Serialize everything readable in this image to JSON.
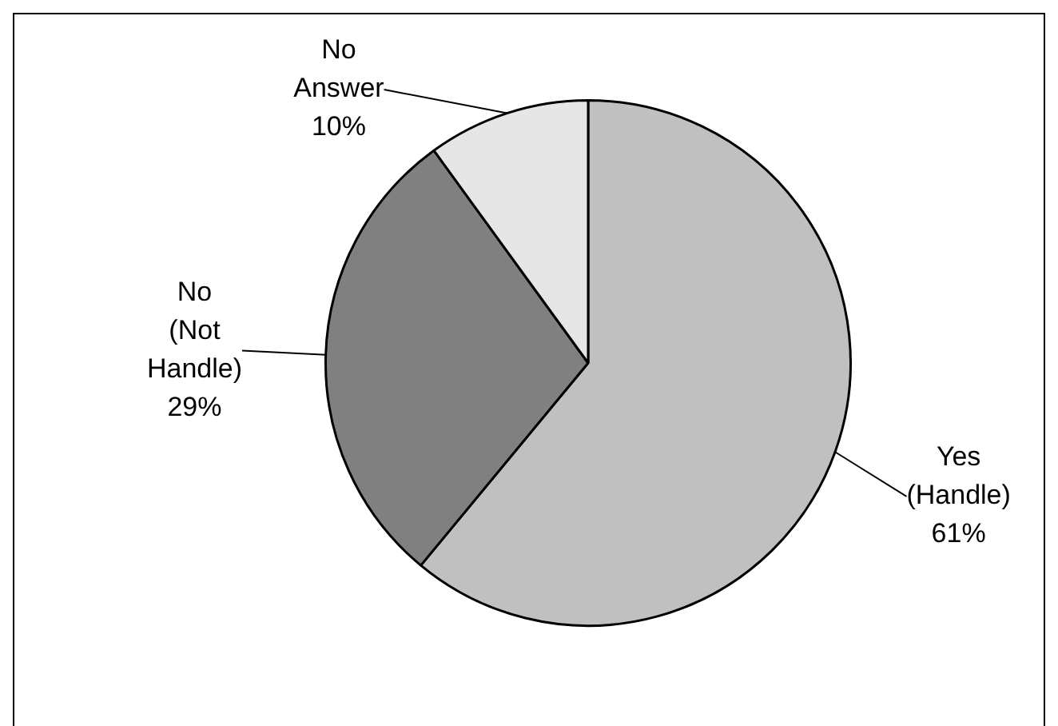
{
  "chart_data": {
    "type": "pie",
    "categories": [
      "Yes (Handle)",
      "No (Not Handle)",
      "No Answer"
    ],
    "values": [
      61,
      29,
      10
    ],
    "colors": [
      "#c0c0c0",
      "#808080",
      "#e6e6e6"
    ],
    "value_labels": [
      "61%",
      "29%",
      "10%"
    ],
    "legend": false
  }
}
